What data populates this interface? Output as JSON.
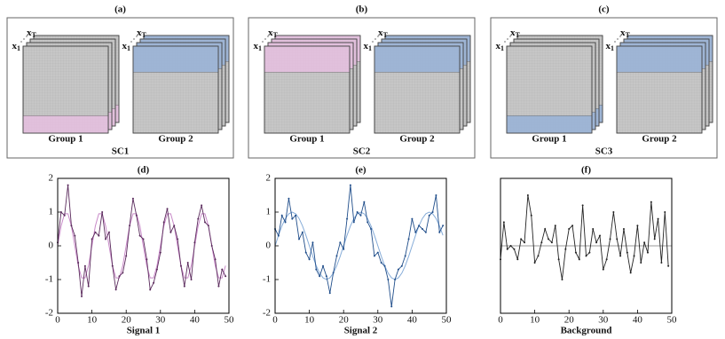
{
  "frame_labels": {
    "symbol": "x",
    "first": "1",
    "last": "T"
  },
  "diagrams": [
    {
      "label": "(a)",
      "caption": "SC1",
      "groups": [
        {
          "label": "Group 1",
          "highlight": {
            "position": "bottom",
            "color": "#e6bfe0"
          }
        },
        {
          "label": "Group 2",
          "highlight": {
            "position": "top",
            "color": "#98b3d8"
          }
        }
      ]
    },
    {
      "label": "(b)",
      "caption": "SC2",
      "groups": [
        {
          "label": "Group 1",
          "highlight": {
            "position": "top",
            "color": "#e6bfe0"
          }
        },
        {
          "label": "Group 2",
          "highlight": {
            "position": "top",
            "color": "#98b3d8"
          }
        }
      ]
    },
    {
      "label": "(c)",
      "caption": "SC3",
      "groups": [
        {
          "label": "Group 1",
          "highlight": {
            "position": "bottom",
            "color": "#98b3d8"
          }
        },
        {
          "label": "Group 2",
          "highlight": {
            "position": "top",
            "color": "#98b3d8"
          }
        }
      ]
    }
  ],
  "chart_data": [
    {
      "type": "line",
      "title": "(d)",
      "x_label": "Signal 1",
      "x": [
        0,
        1,
        2,
        3,
        4,
        5,
        6,
        7,
        8,
        9,
        10,
        11,
        12,
        13,
        14,
        15,
        16,
        17,
        18,
        19,
        20,
        21,
        22,
        23,
        24,
        25,
        26,
        27,
        28,
        29,
        30,
        31,
        32,
        33,
        34,
        35,
        36,
        37,
        38,
        39,
        40,
        41,
        42,
        43,
        44,
        45,
        46,
        47,
        48,
        49
      ],
      "series": [
        {
          "color": "#c889c8",
          "markers": false,
          "values": [
            0,
            0.59,
            0.95,
            0.95,
            0.59,
            0,
            -0.59,
            -0.95,
            -0.95,
            -0.59,
            0,
            0.59,
            0.95,
            0.95,
            0.59,
            0,
            -0.59,
            -0.95,
            -0.95,
            -0.59,
            0,
            0.59,
            0.95,
            0.95,
            0.59,
            0,
            -0.59,
            -0.95,
            -0.95,
            -0.59,
            0,
            0.59,
            0.95,
            0.95,
            0.59,
            0,
            -0.59,
            -0.95,
            -0.95,
            -0.59,
            0,
            0.59,
            0.95,
            0.95,
            0.59,
            0,
            -0.59,
            -0.95,
            -0.95,
            -0.59
          ]
        },
        {
          "color": "#5a2a5c",
          "markers": true,
          "values": [
            0.1,
            1.0,
            0.9,
            1.8,
            0.6,
            0.3,
            -0.5,
            -1.5,
            -0.6,
            -1.2,
            0.2,
            0.4,
            0.3,
            1.0,
            0.2,
            0.4,
            -0.6,
            -1.3,
            -0.9,
            -0.8,
            -0.3,
            0.6,
            1.4,
            0.9,
            0.3,
            0.2,
            -0.4,
            -1.3,
            -1.1,
            -0.7,
            -0.2,
            0.7,
            1.1,
            0.4,
            0.6,
            0.2,
            -0.6,
            -1.2,
            -0.5,
            -1.0,
            0.1,
            0.8,
            1.2,
            0.7,
            0.6,
            0.0,
            -0.4,
            -1.2,
            -0.7,
            -0.9
          ]
        }
      ],
      "xlim": [
        0,
        50
      ],
      "xticks": [
        0,
        10,
        20,
        30,
        40,
        50
      ],
      "ylim": [
        -2,
        2
      ],
      "yticks": [
        -2,
        -1,
        0,
        1,
        2
      ]
    },
    {
      "type": "line",
      "title": "(e)",
      "x_label": "Signal 2",
      "x": [
        0,
        1,
        2,
        3,
        4,
        5,
        6,
        7,
        8,
        9,
        10,
        11,
        12,
        13,
        14,
        15,
        16,
        17,
        18,
        19,
        20,
        21,
        22,
        23,
        24,
        25,
        26,
        27,
        28,
        29,
        30,
        31,
        32,
        33,
        34,
        35,
        36,
        37,
        38,
        39,
        40,
        41,
        42,
        43,
        44,
        45,
        46,
        47,
        48,
        49
      ],
      "series": [
        {
          "color": "#86acd8",
          "markers": false,
          "values": [
            0,
            0.31,
            0.59,
            0.81,
            0.95,
            1,
            0.95,
            0.81,
            0.59,
            0.31,
            0,
            -0.31,
            -0.59,
            -0.81,
            -0.95,
            -1,
            -0.95,
            -0.81,
            -0.59,
            -0.31,
            0,
            0.31,
            0.59,
            0.81,
            0.95,
            1,
            0.95,
            0.81,
            0.59,
            0.31,
            0,
            -0.31,
            -0.59,
            -0.81,
            -0.95,
            -1,
            -0.95,
            -0.81,
            -0.59,
            -0.31,
            0,
            0.31,
            0.59,
            0.81,
            0.95,
            1,
            0.95,
            0.81,
            0.59,
            0.31
          ]
        },
        {
          "color": "#1f4d8a",
          "markers": true,
          "values": [
            0.5,
            0.3,
            0.9,
            0.7,
            1.4,
            0.8,
            0.9,
            0.2,
            0.4,
            -0.2,
            -0.4,
            0.1,
            -0.7,
            -0.9,
            -0.6,
            -0.9,
            -1.4,
            -0.8,
            -0.3,
            0.1,
            -0.1,
            0.8,
            1.8,
            0.7,
            1.0,
            0.9,
            1.3,
            0.7,
            0.5,
            -0.3,
            -0.2,
            -0.5,
            -0.6,
            -1.0,
            -1.8,
            -1.0,
            -0.7,
            -0.6,
            -0.3,
            0.2,
            0.8,
            0.4,
            0.6,
            0.5,
            0.4,
            0.9,
            1.0,
            1.5,
            0.4,
            0.6
          ]
        }
      ],
      "xlim": [
        0,
        50
      ],
      "xticks": [
        0,
        10,
        20,
        30,
        40,
        50
      ],
      "ylim": [
        -2,
        2
      ],
      "yticks": [
        -2,
        -1,
        0,
        1,
        2
      ]
    },
    {
      "type": "line",
      "title": "(f)",
      "x_label": "Background",
      "hline": 0,
      "x": [
        0,
        1,
        2,
        3,
        4,
        5,
        6,
        7,
        8,
        9,
        10,
        11,
        12,
        13,
        14,
        15,
        16,
        17,
        18,
        19,
        20,
        21,
        22,
        23,
        24,
        25,
        26,
        27,
        28,
        29,
        30,
        31,
        32,
        33,
        34,
        35,
        36,
        37,
        38,
        39,
        40,
        41,
        42,
        43,
        44,
        45,
        46,
        47,
        48,
        49
      ],
      "series": [
        {
          "color": "#222222",
          "markers": true,
          "values": [
            -0.4,
            0.7,
            -0.1,
            0,
            -0.1,
            -0.4,
            0.2,
            0.1,
            1.5,
            0.9,
            -0.5,
            -0.3,
            0.1,
            0.5,
            0.2,
            0.1,
            0.6,
            -0.4,
            -1.0,
            -0.1,
            0.5,
            0.6,
            -0.2,
            -0.4,
            1.2,
            -0.3,
            -0.2,
            0.5,
            0.1,
            0.3,
            -0.7,
            -0.4,
            0.2,
            1.0,
            0.2,
            -0.3,
            0.5,
            -0.2,
            -0.8,
            -0.3,
            0.6,
            -0.5,
            0.1,
            -0.2,
            1.3,
            0.2,
            0.8,
            -0.5,
            1.0,
            -0.6
          ]
        }
      ],
      "xlim": [
        0,
        50
      ],
      "xticks": [
        0,
        10,
        20,
        30,
        40,
        50
      ],
      "ylim": [
        -2,
        2
      ]
    }
  ]
}
